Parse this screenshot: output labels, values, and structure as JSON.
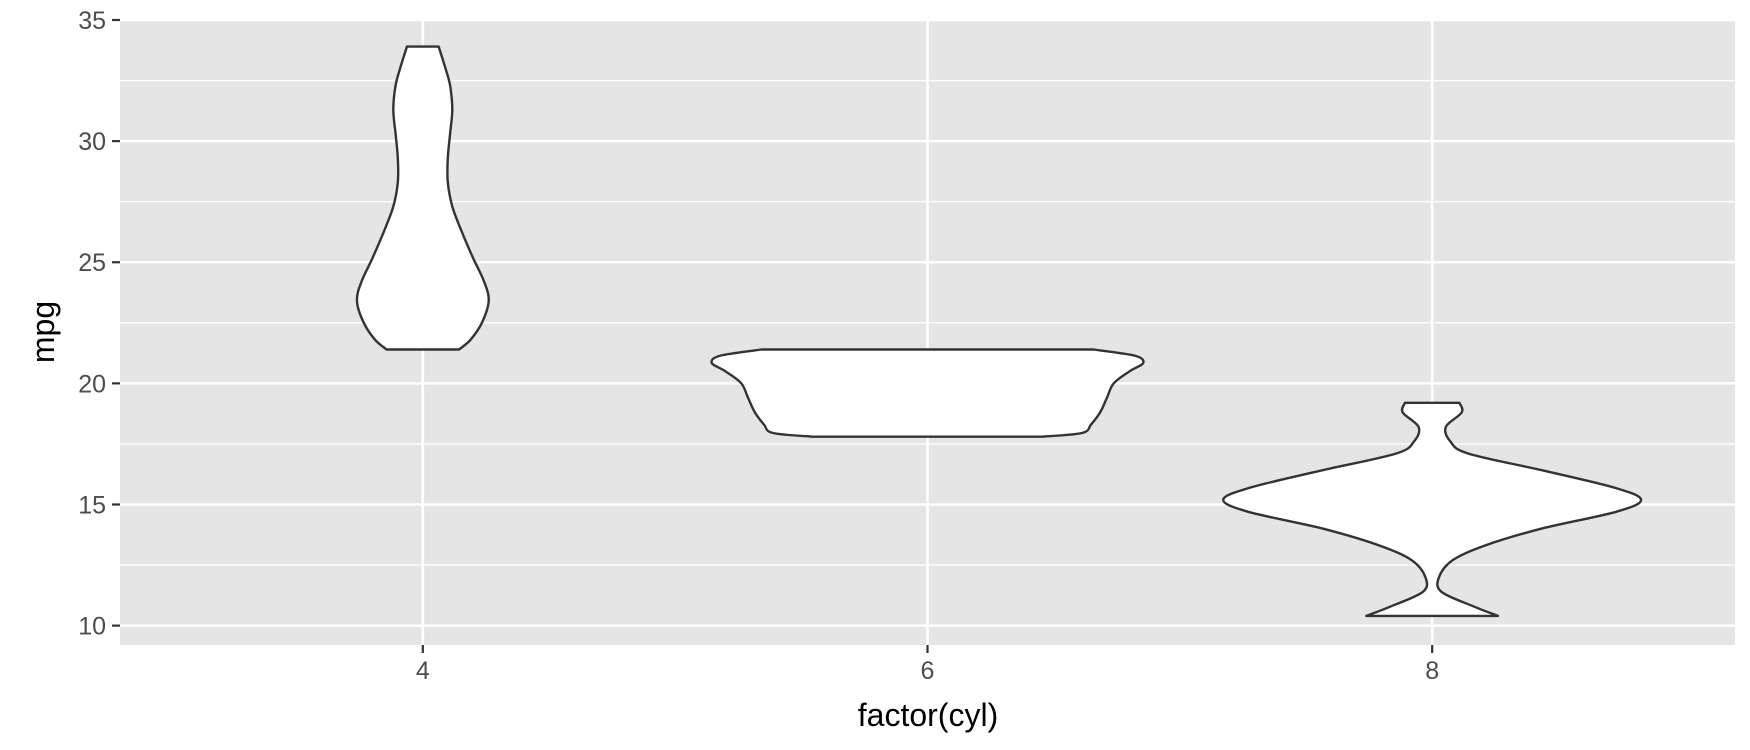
{
  "chart_data": {
    "type": "violin",
    "xlabel": "factor(cyl)",
    "ylabel": "mpg",
    "categories": [
      "4",
      "6",
      "8"
    ],
    "ylim": [
      9.2,
      35.0
    ],
    "yticks": [
      10,
      15,
      20,
      25,
      30,
      35
    ],
    "y_tick_labels": [
      "10",
      "15",
      "20",
      "25",
      "30",
      "35"
    ],
    "grid": true,
    "violins": [
      {
        "category": "4",
        "profile": [
          [
            21.4,
            0.16
          ],
          [
            21.8,
            0.21
          ],
          [
            22.5,
            0.26
          ],
          [
            23.4,
            0.29
          ],
          [
            24.2,
            0.27
          ],
          [
            25.2,
            0.22
          ],
          [
            26.3,
            0.17
          ],
          [
            27.3,
            0.13
          ],
          [
            28.3,
            0.11
          ],
          [
            29.3,
            0.11
          ],
          [
            30.3,
            0.12
          ],
          [
            31.3,
            0.13
          ],
          [
            32.3,
            0.12
          ],
          [
            33.0,
            0.1
          ],
          [
            33.6,
            0.08
          ],
          [
            33.9,
            0.07
          ]
        ]
      },
      {
        "category": "6",
        "profile": [
          [
            17.8,
            0.5
          ],
          [
            17.95,
            0.68
          ],
          [
            18.3,
            0.72
          ],
          [
            18.8,
            0.76
          ],
          [
            19.4,
            0.79
          ],
          [
            20.0,
            0.82
          ],
          [
            20.5,
            0.89
          ],
          [
            20.85,
            0.95
          ],
          [
            21.15,
            0.91
          ],
          [
            21.4,
            0.73
          ]
        ]
      },
      {
        "category": "8",
        "profile": [
          [
            10.4,
            0.29
          ],
          [
            10.8,
            0.18
          ],
          [
            11.4,
            0.04
          ],
          [
            12.0,
            0.03
          ],
          [
            12.7,
            0.09
          ],
          [
            13.3,
            0.23
          ],
          [
            14.0,
            0.48
          ],
          [
            14.7,
            0.81
          ],
          [
            15.2,
            0.92
          ],
          [
            15.7,
            0.8
          ],
          [
            16.4,
            0.49
          ],
          [
            17.1,
            0.16
          ],
          [
            17.6,
            0.08
          ],
          [
            18.2,
            0.06
          ],
          [
            18.8,
            0.13
          ],
          [
            19.2,
            0.12
          ]
        ]
      }
    ]
  }
}
